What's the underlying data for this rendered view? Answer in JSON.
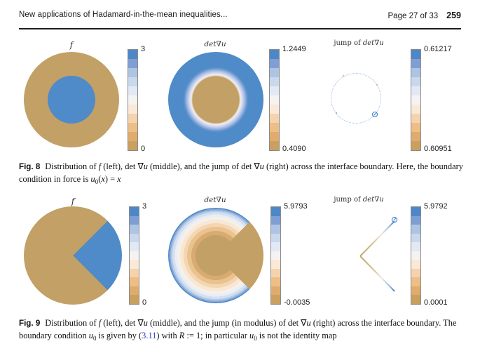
{
  "header": {
    "running_title": "New applications of Hadamard-in-the-mean inequalities...",
    "page_info": "Page 27 of 33",
    "page_number": "259"
  },
  "palette": {
    "blue": "#4e8bc8",
    "tan": "#c2a066",
    "link_blue": "#2545cf",
    "colorbar_colors": [
      "#4d87c7",
      "#7f9fd4",
      "#adc4e3",
      "#c9d8ec",
      "#e2e9f4",
      "#f5f3f1",
      "#f9e9d6",
      "#f5d3ae",
      "#edbe86",
      "#e0ac6d",
      "#c9a05f"
    ]
  },
  "fig8": {
    "panels": [
      {
        "title": [
          {
            "t": "f",
            "s": "i"
          }
        ],
        "cbar_top": "3",
        "cbar_bottom": "0"
      },
      {
        "title": [
          {
            "t": "det",
            "s": "i"
          },
          {
            "t": "∇"
          },
          {
            "t": "u",
            "s": "i"
          }
        ],
        "cbar_top": "1.2449",
        "cbar_bottom": "0.4090"
      },
      {
        "title": [
          {
            "t": "jump of  "
          },
          {
            "t": "det",
            "s": "i"
          },
          {
            "t": "∇"
          },
          {
            "t": "u",
            "s": "i"
          }
        ],
        "cbar_top": "0.61217",
        "cbar_bottom": "0.60951"
      }
    ],
    "caption": [
      {
        "t": "Fig. 8",
        "s": "b"
      },
      {
        "t": "Distribution of "
      },
      {
        "t": "f",
        "s": "i"
      },
      {
        "t": " (left), det "
      },
      {
        "t": "∇"
      },
      {
        "t": "u",
        "s": "i"
      },
      {
        "t": " (middle), and the jump of det "
      },
      {
        "t": "∇"
      },
      {
        "t": "u",
        "s": "i"
      },
      {
        "t": " (right) across the interface boundary. Here, the boundary condition in force is "
      },
      {
        "t": "u",
        "s": "i"
      },
      {
        "t": "0",
        "s": "sub"
      },
      {
        "t": "("
      },
      {
        "t": "x",
        "s": "i"
      },
      {
        "t": ") = "
      },
      {
        "t": "x",
        "s": "i"
      }
    ]
  },
  "fig9": {
    "panels": [
      {
        "title": [
          {
            "t": "f",
            "s": "i"
          }
        ],
        "cbar_top": "3",
        "cbar_bottom": "0"
      },
      {
        "title": [
          {
            "t": "det",
            "s": "i"
          },
          {
            "t": "∇"
          },
          {
            "t": "u",
            "s": "i"
          }
        ],
        "cbar_top": "5.9793",
        "cbar_bottom": "-0.0035"
      },
      {
        "title": [
          {
            "t": "jump of  "
          },
          {
            "t": "det",
            "s": "i"
          },
          {
            "t": "∇"
          },
          {
            "t": "u",
            "s": "i"
          }
        ],
        "cbar_top": "5.9792",
        "cbar_bottom": "0.0001"
      }
    ],
    "caption": [
      {
        "t": "Fig. 9",
        "s": "b"
      },
      {
        "t": "Distribution of "
      },
      {
        "t": "f",
        "s": "i"
      },
      {
        "t": " (left), det "
      },
      {
        "t": "∇"
      },
      {
        "t": "u",
        "s": "i"
      },
      {
        "t": " (middle), and the jump (in modulus) of det "
      },
      {
        "t": "∇"
      },
      {
        "t": "u",
        "s": "i"
      },
      {
        "t": " (right) across the interface boundary. The boundary condition "
      },
      {
        "t": "u",
        "s": "i"
      },
      {
        "t": "0",
        "s": "sub"
      },
      {
        "t": " is given by ("
      },
      {
        "t": "3.11",
        "s": "link"
      },
      {
        "t": ") with "
      },
      {
        "t": "R",
        "s": "i"
      },
      {
        "t": " := 1; in particular "
      },
      {
        "t": "u",
        "s": "i"
      },
      {
        "t": "0",
        "s": "sub"
      },
      {
        "t": " is not the identity map"
      }
    ]
  }
}
